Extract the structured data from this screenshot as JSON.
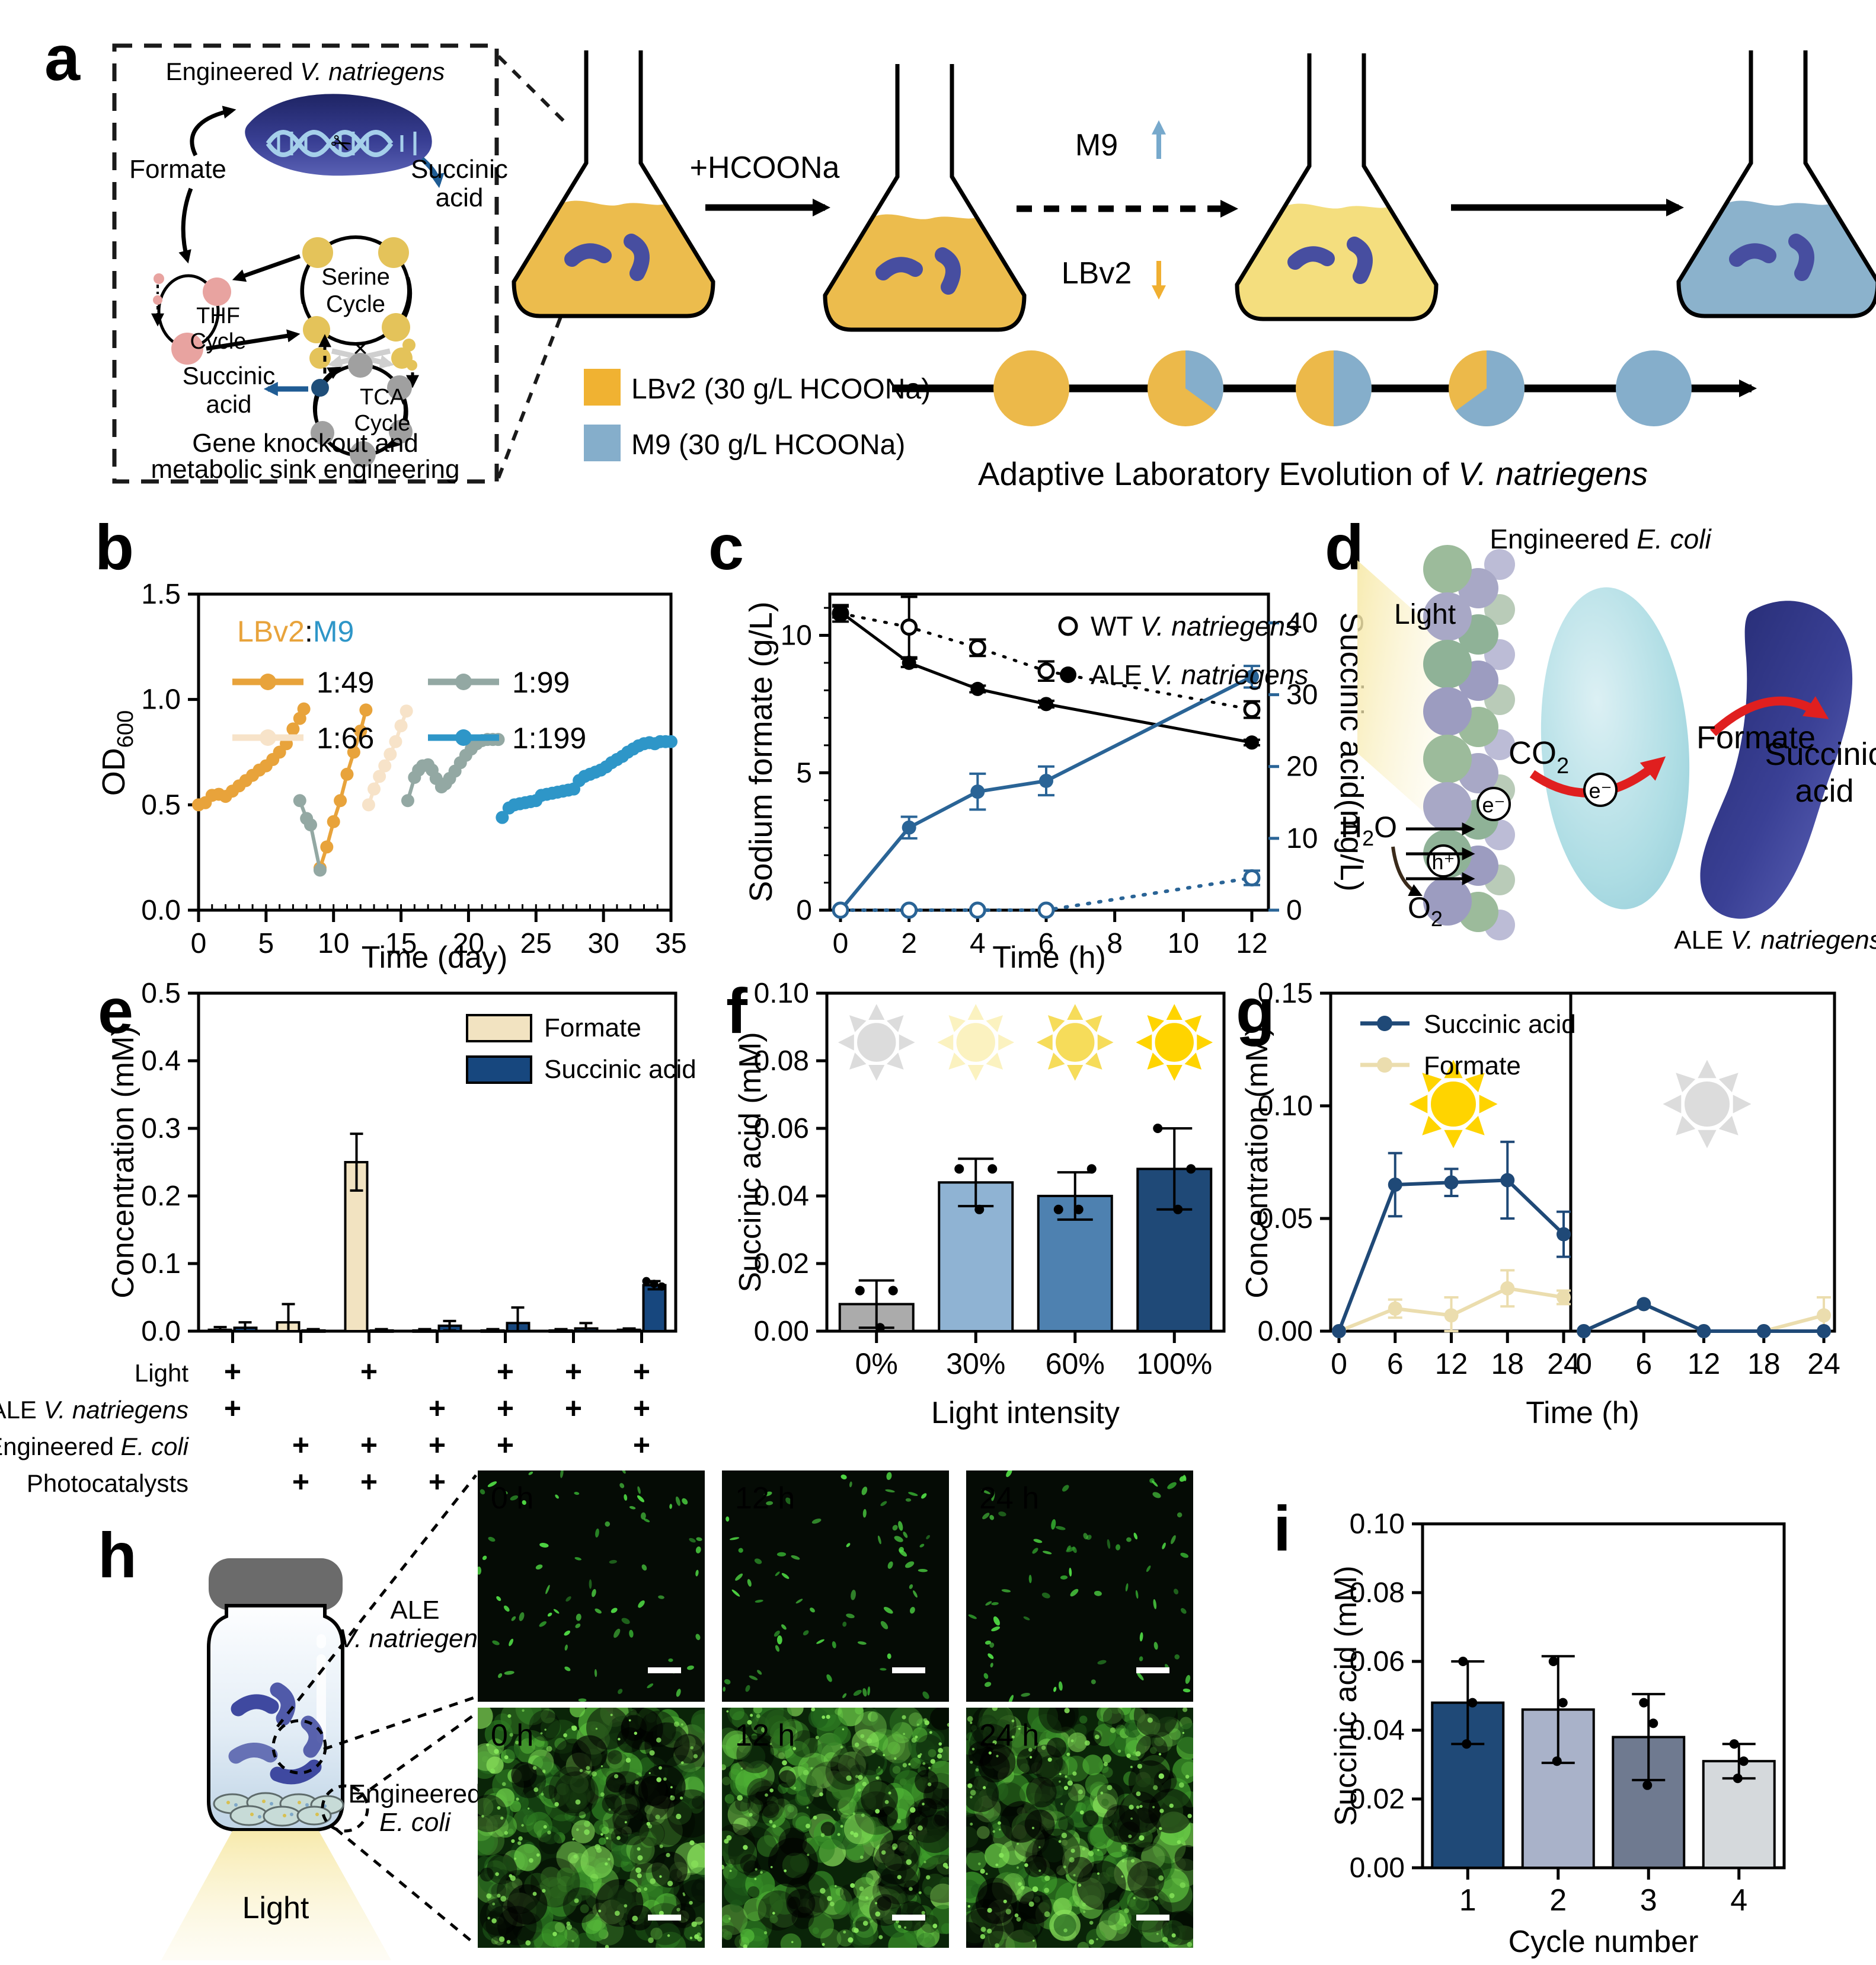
{
  "panels": {
    "a": {
      "letter": "a",
      "box": {
        "title_plain": "Engineered ",
        "title_italic": "V. natriegens",
        "formate": "Formate",
        "succinic_right": [
          "Succinic",
          "acid"
        ],
        "thf": [
          "THF",
          "Cycle"
        ],
        "serine": [
          "Serine",
          "Cycle"
        ],
        "tca": [
          "TCA",
          "Cycle"
        ],
        "succinic_left": [
          "Succinic",
          "acid"
        ],
        "caption_line1": "Gene knockout and",
        "caption_line2": "metabolic sink engineering"
      },
      "arrow1_label": "+HCOONa",
      "m9": "M9",
      "lbv2": "LBv2",
      "legend": [
        {
          "swatch": "#F0B232",
          "label": "LBv2 (30 g/L HCOONa)",
          "text_color": "#F0AF31"
        },
        {
          "swatch": "#85AECB",
          "label": "M9  (30 g/L HCOONa)",
          "text_color": "#77A9CC"
        }
      ],
      "pies": {
        "blue_fractions": [
          0,
          0.35,
          0.5,
          0.65,
          1
        ],
        "yellow": "#ECB94A",
        "blue": "#85AECB"
      },
      "caption_plain": "Adaptive Laboratory Evolution of ",
      "caption_italic": "V. natriegens"
    },
    "b": {
      "letter": "b"
    },
    "c": {
      "letter": "c"
    },
    "d": {
      "letter": "d",
      "title_plain": "Engineered ",
      "title_italic": "E. coli",
      "light": "Light",
      "co2_main": "CO",
      "co2_sub": "2",
      "formate": "Formate",
      "succinic": [
        "Succinic",
        "acid"
      ],
      "h2o_pre": "H",
      "h2o_sub": "2",
      "h2o_post": "O",
      "o2_main": "O",
      "o2_sub": "2",
      "e_minus": "e⁻",
      "h_plus": "h⁺",
      "ale_plain": "ALE ",
      "ale_italic": "V. natriegens"
    },
    "e": {
      "letter": "e"
    },
    "f": {
      "letter": "f"
    },
    "g": {
      "letter": "g"
    },
    "h": {
      "letter": "h",
      "ale_line1": "ALE",
      "ale_line2": "V. natriegens",
      "ecoli_line1": "Engineered",
      "ecoli_line2": "E. coli",
      "light": "Light",
      "times": [
        "0 h",
        "12 h",
        "24 h"
      ]
    },
    "i": {
      "letter": "i"
    }
  },
  "chart_data": {
    "b": {
      "type": "line",
      "xlabel": "Time (day)",
      "ylabel_main": "OD",
      "ylabel_sub": "600",
      "xlim": [
        0,
        35
      ],
      "ylim": [
        0,
        1.5
      ],
      "xticks": [
        0,
        5,
        10,
        15,
        20,
        25,
        30,
        35
      ],
      "xtick_labels": [
        "0",
        "5",
        "10",
        "15",
        "20",
        "25",
        "30",
        "35"
      ],
      "yticks": [
        0,
        0.5,
        1,
        1.5
      ],
      "ytick_labels": [
        "0.0",
        "0.5",
        "1.0",
        "1.5"
      ],
      "legend_title": {
        "left": "LBv2",
        "sep": ":",
        "right": "M9",
        "left_color": "#E8A33B",
        "right_color": "#2E96C8"
      },
      "series": [
        {
          "name": "1:49",
          "color": "#E8A33B",
          "segments": [
            [
              [
                0,
                0.5
              ],
              [
                0.5,
                0.51
              ],
              [
                1,
                0.545
              ],
              [
                1.5,
                0.55
              ],
              [
                2,
                0.54
              ],
              [
                2.5,
                0.565
              ],
              [
                3,
                0.59
              ],
              [
                3.5,
                0.615
              ],
              [
                4,
                0.64
              ],
              [
                4.5,
                0.665
              ],
              [
                5,
                0.685
              ],
              [
                5.5,
                0.715
              ],
              [
                6,
                0.75
              ],
              [
                6.5,
                0.79
              ],
              [
                7,
                0.86
              ],
              [
                7.5,
                0.91
              ],
              [
                7.8,
                0.955
              ]
            ],
            [
              [
                9,
                0.2
              ],
              [
                9.5,
                0.3
              ],
              [
                10,
                0.42
              ],
              [
                10.5,
                0.52
              ],
              [
                11,
                0.645
              ],
              [
                11.5,
                0.75
              ],
              [
                12,
                0.85
              ],
              [
                12.4,
                0.95
              ]
            ]
          ]
        },
        {
          "name": "1:66",
          "color": "#F7E3C9",
          "segments": [
            [
              [
                12.6,
                0.5
              ],
              [
                13,
                0.575
              ],
              [
                13.4,
                0.635
              ],
              [
                13.8,
                0.685
              ],
              [
                14.2,
                0.74
              ],
              [
                14.6,
                0.8
              ],
              [
                15,
                0.875
              ],
              [
                15.4,
                0.945
              ]
            ]
          ]
        },
        {
          "name": "1:99",
          "color": "#93A8A3",
          "segments": [
            [
              [
                7.5,
                0.52
              ],
              [
                8,
                0.435
              ],
              [
                8.3,
                0.405
              ],
              [
                9,
                0.19
              ]
            ],
            [
              [
                15.5,
                0.52
              ],
              [
                16,
                0.63
              ],
              [
                16.3,
                0.665
              ],
              [
                16.6,
                0.685
              ],
              [
                17,
                0.69
              ],
              [
                17.3,
                0.665
              ],
              [
                17.6,
                0.625
              ],
              [
                18,
                0.585
              ],
              [
                18.3,
                0.6
              ],
              [
                18.6,
                0.625
              ],
              [
                19,
                0.66
              ],
              [
                19.4,
                0.7
              ],
              [
                19.8,
                0.735
              ],
              [
                20.2,
                0.765
              ],
              [
                20.6,
                0.79
              ],
              [
                21,
                0.805
              ],
              [
                21.4,
                0.81
              ],
              [
                21.8,
                0.81
              ],
              [
                22.2,
                0.81
              ]
            ]
          ]
        },
        {
          "name": "1:199",
          "color": "#2E96C8",
          "segments": [
            [
              [
                22.5,
                0.44
              ],
              [
                23,
                0.485
              ],
              [
                23.4,
                0.5
              ],
              [
                23.8,
                0.505
              ],
              [
                24.2,
                0.51
              ],
              [
                24.6,
                0.515
              ],
              [
                25,
                0.52
              ],
              [
                25.4,
                0.545
              ],
              [
                25.8,
                0.55
              ],
              [
                26.2,
                0.555
              ],
              [
                26.6,
                0.56
              ],
              [
                27,
                0.565
              ],
              [
                27.4,
                0.57
              ],
              [
                27.8,
                0.575
              ],
              [
                28.2,
                0.615
              ],
              [
                28.6,
                0.635
              ],
              [
                29,
                0.645
              ],
              [
                29.4,
                0.655
              ],
              [
                29.8,
                0.665
              ],
              [
                30.2,
                0.68
              ],
              [
                30.6,
                0.7
              ],
              [
                31,
                0.715
              ],
              [
                31.4,
                0.73
              ],
              [
                31.8,
                0.75
              ],
              [
                32.2,
                0.765
              ],
              [
                32.6,
                0.78
              ],
              [
                33,
                0.79
              ],
              [
                33.4,
                0.795
              ],
              [
                33.8,
                0.79
              ],
              [
                34.2,
                0.8
              ],
              [
                34.6,
                0.8
              ],
              [
                35,
                0.8
              ]
            ]
          ]
        }
      ]
    },
    "c": {
      "type": "line",
      "xlabel": "Time (h)",
      "ylabel_left": "Sodium formate (g/L)",
      "ylabel_right": "Succinic acid(mg/L)",
      "xlim": [
        0,
        12
      ],
      "ylim_left": [
        0,
        11.5
      ],
      "ylim_right": [
        0,
        44
      ],
      "xticks": [
        0,
        2,
        4,
        6,
        8,
        10,
        12
      ],
      "xtick_labels": [
        "0",
        "2",
        "4",
        "6",
        "8",
        "10",
        "12"
      ],
      "yticks_left": [
        0,
        5,
        10
      ],
      "ytick_labels_left": [
        "0",
        "5",
        "10"
      ],
      "yticks_right": [
        0,
        10,
        20,
        30,
        40
      ],
      "ytick_labels_right": [
        "0",
        "10",
        "20",
        "30",
        "40"
      ],
      "right_color": "#2A6496",
      "legend": [
        {
          "marker": "open",
          "plain": "WT ",
          "italic": "V. natriegens"
        },
        {
          "marker": "filled",
          "plain": "ALE ",
          "italic": "V. natriegens"
        }
      ],
      "series": [
        {
          "name": "WT sodium formate",
          "axis": "left",
          "style": "dotted",
          "marker": "open",
          "color": "#000000",
          "x": [
            0,
            2,
            4,
            6,
            12
          ],
          "y": [
            10.8,
            10.3,
            9.55,
            8.7,
            7.3
          ],
          "err": [
            0.3,
            1.1,
            0.3,
            0.35,
            0.3
          ]
        },
        {
          "name": "ALE sodium formate",
          "axis": "left",
          "style": "solid",
          "marker": "filled",
          "color": "#000000",
          "x": [
            0,
            2,
            4,
            6,
            12
          ],
          "y": [
            10.85,
            9.0,
            8.05,
            7.5,
            6.1
          ],
          "err": [
            0.2,
            0.15,
            0.12,
            0.12,
            0.1
          ]
        },
        {
          "name": "ALE succinic acid",
          "axis": "right",
          "style": "solid",
          "marker": "filled",
          "color": "#2A6496",
          "x": [
            0,
            2,
            4,
            6,
            12
          ],
          "y": [
            0,
            11.5,
            16.5,
            18,
            32.5
          ],
          "err": [
            0,
            1.5,
            2.5,
            2,
            1.5
          ]
        },
        {
          "name": "WT succinic acid",
          "axis": "right",
          "style": "dotted",
          "marker": "open",
          "color": "#2A6496",
          "x": [
            0,
            2,
            4,
            6,
            12
          ],
          "y": [
            0,
            0,
            0,
            0,
            4.5
          ],
          "err": [
            0,
            0,
            0,
            0,
            1
          ]
        }
      ]
    },
    "e": {
      "type": "bar",
      "ylabel": "Concentration (mM)",
      "ylim": [
        0,
        0.5
      ],
      "yticks": [
        0,
        0.1,
        0.2,
        0.3,
        0.4,
        0.5
      ],
      "ytick_labels": [
        "0.0",
        "0.1",
        "0.2",
        "0.3",
        "0.4",
        "0.5"
      ],
      "legend": [
        {
          "label": "Formate",
          "color": "#F2E3C1"
        },
        {
          "label": "Succinic acid",
          "color": "#17477E"
        }
      ],
      "formate": {
        "values": [
          0.002,
          0.013,
          0.25,
          0.001,
          0.001,
          0.001,
          0.002
        ],
        "err": [
          0.004,
          0.027,
          0.042,
          0.002,
          0.002,
          0.002,
          0.002
        ]
      },
      "succinic": {
        "values": [
          0.005,
          0.001,
          0.001,
          0.008,
          0.012,
          0.004,
          0.068
        ],
        "err": [
          0.008,
          0.002,
          0.002,
          0.007,
          0.023,
          0.008,
          0.006
        ]
      },
      "dots_succinic_last": [
        0.074,
        0.07,
        0.066
      ],
      "conditions": {
        "row_labels": [
          {
            "plain": "Light",
            "italic": ""
          },
          {
            "plain": "ALE ",
            "italic": "V. natriegens"
          },
          {
            "plain": "Engineered ",
            "italic": "E. coli"
          },
          {
            "plain": "Photocatalysts",
            "italic": ""
          }
        ],
        "matrix": [
          [
            "+",
            "",
            "+",
            "",
            "+",
            "+",
            "+"
          ],
          [
            "+",
            "",
            "",
            "+",
            "+",
            "+",
            "+"
          ],
          [
            "",
            "+",
            "+",
            "+",
            "+",
            "",
            "+"
          ],
          [
            "",
            "+",
            "+",
            "+",
            "",
            "+",
            "+"
          ]
        ]
      }
    },
    "f": {
      "type": "bar",
      "xlabel": "Light intensity",
      "ylabel": "Succinic acid (mM)",
      "ylim": [
        0,
        0.1
      ],
      "yticks": [
        0,
        0.02,
        0.04,
        0.06,
        0.08,
        0.1
      ],
      "ytick_labels": [
        "0.00",
        "0.02",
        "0.04",
        "0.06",
        "0.08",
        "0.10"
      ],
      "categories": [
        "0%",
        "30%",
        "60%",
        "100%"
      ],
      "values": [
        0.008,
        0.044,
        0.04,
        0.048
      ],
      "err": [
        0.007,
        0.007,
        0.007,
        0.012
      ],
      "dots": [
        [
          0.012,
          0.012,
          0.001
        ],
        [
          0.048,
          0.048,
          0.036
        ],
        [
          0.036,
          0.048,
          0.036
        ],
        [
          0.06,
          0.048,
          0.036
        ]
      ],
      "colors": [
        "#ABABAB",
        "#8FB3D3",
        "#4E81B0",
        "#1F4977"
      ],
      "sun_colors": [
        "#DCDCDC",
        "#FBF2C0",
        "#F6DC5A",
        "#FFD400"
      ]
    },
    "g": {
      "type": "line",
      "xlabel": "Time (h)",
      "ylabel": "Concentration (mM)",
      "ylim": [
        0,
        0.15
      ],
      "yticks": [
        0,
        0.05,
        0.1,
        0.15
      ],
      "ytick_labels": [
        "0.00",
        "0.05",
        "0.10",
        "0.15"
      ],
      "xticks": [
        0,
        6,
        12,
        18,
        24
      ],
      "xtick_labels": [
        "0",
        "6",
        "12",
        "18",
        "24"
      ],
      "legend": [
        {
          "label": "Succinic acid",
          "color": "#1F4977"
        },
        {
          "label": "Formate",
          "color": "#EBDDAE"
        }
      ],
      "light_panel": {
        "succinic": {
          "y": [
            0,
            0.065,
            0.066,
            0.067,
            0.043
          ],
          "err": [
            0,
            0.014,
            0.006,
            0.017,
            0.01
          ]
        },
        "formate": {
          "y": [
            0,
            0.01,
            0.007,
            0.019,
            0.015
          ],
          "err": [
            0,
            0.004,
            0.008,
            0.008,
            0.003
          ]
        }
      },
      "dark_panel": {
        "succinic": {
          "y": [
            0,
            0.012,
            0,
            0,
            0
          ],
          "err": [
            0,
            0,
            0,
            0,
            0
          ]
        },
        "formate": {
          "y": [
            0,
            0.012,
            0,
            0,
            0.007
          ],
          "err": [
            0,
            0,
            0,
            0,
            0.008
          ]
        }
      },
      "sun_light_color": "#FFD400",
      "sun_dark_color": "#DCDCDC"
    },
    "i": {
      "type": "bar",
      "xlabel": "Cycle number",
      "ylabel": "Succinic acid (mM)",
      "ylim": [
        0,
        0.1
      ],
      "yticks": [
        0,
        0.02,
        0.04,
        0.06,
        0.08,
        0.1
      ],
      "ytick_labels": [
        "0.00",
        "0.02",
        "0.04",
        "0.06",
        "0.08",
        "0.10"
      ],
      "categories": [
        "1",
        "2",
        "3",
        "4"
      ],
      "values": [
        0.048,
        0.046,
        0.038,
        0.031
      ],
      "err": [
        0.012,
        0.0155,
        0.0125,
        0.005
      ],
      "dots": [
        [
          0.06,
          0.048,
          0.036
        ],
        [
          0.06,
          0.048,
          0.031
        ],
        [
          0.048,
          0.042,
          0.024
        ],
        [
          0.036,
          0.031,
          0.026
        ]
      ],
      "colors": [
        "#1F4977",
        "#A9B2C9",
        "#6F7A90",
        "#D5D9DC"
      ]
    }
  }
}
